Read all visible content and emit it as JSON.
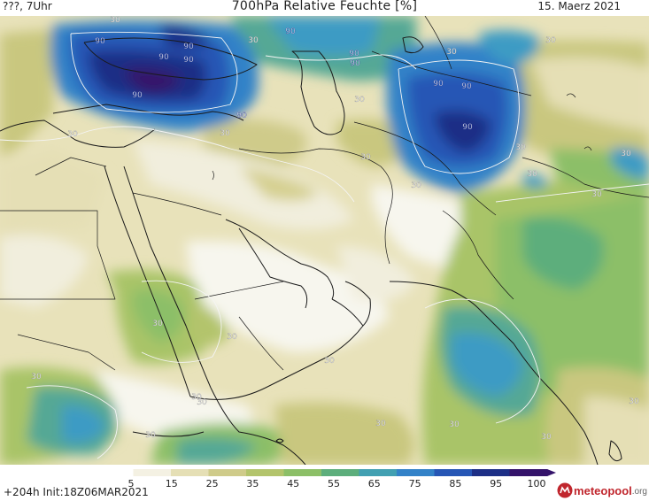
{
  "header": {
    "left_label": "???, 7Uhr",
    "title": "700hPa Relative Feuchte [%]",
    "date": "15. Maerz 2021"
  },
  "map": {
    "contour_labels": [
      "90",
      "90",
      "90",
      "90",
      "90",
      "90",
      "90",
      "90",
      "90",
      "90",
      "90",
      "90",
      "30",
      "30",
      "30",
      "30",
      "30",
      "30",
      "30",
      "30",
      "30",
      "30",
      "30",
      "30",
      "30",
      "30",
      "30",
      "30",
      "30",
      "30",
      "30",
      "30",
      "30",
      "30",
      "30",
      "30"
    ],
    "colors": {
      "very_dry": "#ffffff",
      "dry": "#f1eedd",
      "tan": "#e5dfb5",
      "olive": "#c9c77f",
      "light_green": "#a9c468",
      "green": "#7dbb6a",
      "teal": "#54a895",
      "cyan_blue": "#3d9bc4",
      "blue": "#2d6fc8",
      "deep_blue": "#2143a8",
      "navy": "#1b1f73",
      "purple": "#36136b"
    }
  },
  "colorbar": {
    "ticks": [
      "5",
      "15",
      "25",
      "35",
      "45",
      "55",
      "65",
      "75",
      "85",
      "95",
      "100"
    ],
    "colors": [
      "#ffffff",
      "#f4f1e3",
      "#e5dfb5",
      "#cfcb8a",
      "#b3c46c",
      "#8cbf67",
      "#5dae7c",
      "#42a0b2",
      "#3382c8",
      "#2656b5",
      "#1d2f86",
      "#34136a"
    ]
  },
  "footer": {
    "run_info": "+204h Init:18Z06MAR2021",
    "brand_name": "meteopool",
    "brand_suffix": ".org"
  }
}
